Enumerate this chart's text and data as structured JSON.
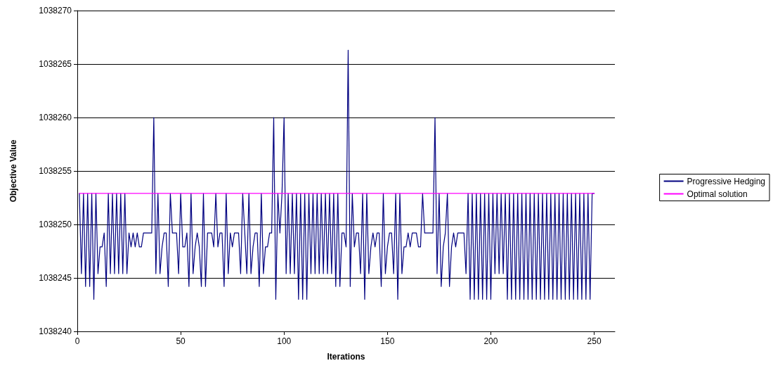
{
  "chart_data": {
    "type": "line",
    "xlabel": "Iterations",
    "ylabel": "Objective Value",
    "x": [
      1,
      2,
      3,
      4,
      5,
      6,
      7,
      8,
      9,
      10,
      11,
      12,
      13,
      14,
      15,
      16,
      17,
      18,
      19,
      20,
      21,
      22,
      23,
      24,
      25,
      26,
      27,
      28,
      29,
      30,
      31,
      32,
      33,
      34,
      35,
      36,
      37,
      38,
      39,
      40,
      41,
      42,
      43,
      44,
      45,
      46,
      47,
      48,
      49,
      50,
      51,
      52,
      53,
      54,
      55,
      56,
      57,
      58,
      59,
      60,
      61,
      62,
      63,
      64,
      65,
      66,
      67,
      68,
      69,
      70,
      71,
      72,
      73,
      74,
      75,
      76,
      77,
      78,
      79,
      80,
      81,
      82,
      83,
      84,
      85,
      86,
      87,
      88,
      89,
      90,
      91,
      92,
      93,
      94,
      95,
      96,
      97,
      98,
      99,
      100,
      101,
      102,
      103,
      104,
      105,
      106,
      107,
      108,
      109,
      110,
      111,
      112,
      113,
      114,
      115,
      116,
      117,
      118,
      119,
      120,
      121,
      122,
      123,
      124,
      125,
      126,
      127,
      128,
      129,
      130,
      131,
      132,
      133,
      134,
      135,
      136,
      137,
      138,
      139,
      140,
      141,
      142,
      143,
      144,
      145,
      146,
      147,
      148,
      149,
      150,
      151,
      152,
      153,
      154,
      155,
      156,
      157,
      158,
      159,
      160,
      161,
      162,
      163,
      164,
      165,
      166,
      167,
      168,
      169,
      170,
      171,
      172,
      173,
      174,
      175,
      176,
      177,
      178,
      179,
      180,
      181,
      182,
      183,
      184,
      185,
      186,
      187,
      188,
      189,
      190,
      191,
      192,
      193,
      194,
      195,
      196,
      197,
      198,
      199,
      200,
      201,
      202,
      203,
      204,
      205,
      206,
      207,
      208,
      209,
      210,
      211,
      212,
      213,
      214,
      215,
      216,
      217,
      218,
      219,
      220,
      221,
      222,
      223,
      224,
      225,
      226,
      227,
      228,
      229,
      230,
      231,
      232,
      233,
      234,
      235,
      236,
      237,
      238,
      239,
      240,
      241,
      242,
      243,
      244,
      245,
      246,
      247,
      248,
      249,
      250
    ],
    "series": [
      {
        "name": "Progressive Hedging",
        "color": "#000080",
        "values": [
          1038252.9,
          1038245.4,
          1038252.9,
          1038244.2,
          1038252.9,
          1038244.2,
          1038252.9,
          1038243.0,
          1038252.9,
          1038245.4,
          1038247.9,
          1038247.9,
          1038249.2,
          1038244.2,
          1038252.9,
          1038245.4,
          1038252.9,
          1038245.4,
          1038252.9,
          1038245.4,
          1038252.9,
          1038245.4,
          1038252.9,
          1038245.4,
          1038249.2,
          1038247.9,
          1038249.2,
          1038247.9,
          1038249.2,
          1038247.9,
          1038247.9,
          1038249.2,
          1038249.2,
          1038249.2,
          1038249.2,
          1038249.2,
          1038260,
          1038245.4,
          1038252.9,
          1038245.4,
          1038247.9,
          1038249.2,
          1038249.2,
          1038244.2,
          1038252.9,
          1038249.2,
          1038249.2,
          1038249.2,
          1038245.4,
          1038252.9,
          1038247.9,
          1038247.9,
          1038249.2,
          1038244.2,
          1038252.9,
          1038245.4,
          1038247.9,
          1038249.2,
          1038247.9,
          1038244.2,
          1038252.9,
          1038244.2,
          1038249.2,
          1038249.2,
          1038249.2,
          1038247.9,
          1038252.9,
          1038247.9,
          1038249.2,
          1038249.2,
          1038244.2,
          1038252.9,
          1038245.4,
          1038249.2,
          1038247.9,
          1038249.2,
          1038249.2,
          1038249.2,
          1038245.4,
          1038252.9,
          1038249.2,
          1038245.4,
          1038252.9,
          1038245.4,
          1038247.9,
          1038249.2,
          1038249.2,
          1038244.2,
          1038252.9,
          1038245.4,
          1038247.9,
          1038247.9,
          1038249.2,
          1038249.2,
          1038260,
          1038243.0,
          1038252.9,
          1038249.2,
          1038252.9,
          1038260,
          1038245.4,
          1038252.9,
          1038245.4,
          1038252.9,
          1038245.4,
          1038252.9,
          1038243.0,
          1038252.9,
          1038243.0,
          1038252.9,
          1038243.0,
          1038252.9,
          1038245.4,
          1038252.9,
          1038245.4,
          1038252.9,
          1038245.4,
          1038252.9,
          1038245.4,
          1038252.9,
          1038245.4,
          1038252.9,
          1038245.4,
          1038252.9,
          1038244.2,
          1038252.9,
          1038244.2,
          1038249.2,
          1038249.2,
          1038247.9,
          1038266.3,
          1038244.2,
          1038252.9,
          1038247.9,
          1038249.2,
          1038249.2,
          1038245.4,
          1038252.9,
          1038243.0,
          1038252.9,
          1038245.4,
          1038247.9,
          1038249.2,
          1038247.9,
          1038249.2,
          1038249.2,
          1038244.2,
          1038252.9,
          1038245.4,
          1038247.9,
          1038249.2,
          1038249.2,
          1038245.4,
          1038252.9,
          1038243.0,
          1038252.9,
          1038245.4,
          1038247.9,
          1038247.9,
          1038249.2,
          1038247.9,
          1038249.2,
          1038249.2,
          1038249.2,
          1038247.9,
          1038247.9,
          1038252.9,
          1038249.2,
          1038249.2,
          1038249.2,
          1038249.2,
          1038249.2,
          1038260,
          1038245.4,
          1038252.9,
          1038244.2,
          1038247.9,
          1038249.2,
          1038252.9,
          1038244.2,
          1038247.9,
          1038249.2,
          1038247.9,
          1038249.2,
          1038249.2,
          1038249.2,
          1038249.2,
          1038245.4,
          1038252.9,
          1038243.0,
          1038252.9,
          1038243.0,
          1038252.9,
          1038243.0,
          1038252.9,
          1038243.0,
          1038252.9,
          1038243.0,
          1038252.9,
          1038243.0,
          1038252.9,
          1038245.4,
          1038252.9,
          1038245.4,
          1038252.9,
          1038245.4,
          1038252.9,
          1038243.0,
          1038252.9,
          1038243.0,
          1038252.9,
          1038243.0,
          1038252.9,
          1038243.0,
          1038252.9,
          1038243.0,
          1038252.9,
          1038243.0,
          1038252.9,
          1038243.0,
          1038252.9,
          1038243.0,
          1038252.9,
          1038243.0,
          1038252.9,
          1038243.0,
          1038252.9,
          1038243.0,
          1038252.9,
          1038243.0,
          1038252.9,
          1038243.0,
          1038252.9,
          1038243.0,
          1038252.9,
          1038243.0,
          1038252.9,
          1038243.0,
          1038252.9,
          1038243.0,
          1038252.9,
          1038243.0,
          1038252.9,
          1038243.0,
          1038252.9,
          1038243.0,
          1038252.9,
          1038243.0,
          1038252.9,
          1038252.9
        ]
      },
      {
        "name": "Optimal solution",
        "color": "#ff00ff",
        "x": [
          1,
          250
        ],
        "values": [
          1038252.9,
          1038252.9
        ]
      }
    ],
    "xlim": [
      0,
      260
    ],
    "xticks": [
      0,
      50,
      100,
      150,
      200,
      250
    ],
    "ylim": [
      1038240,
      1038270
    ],
    "yticks": [
      1038240,
      1038245,
      1038250,
      1038255,
      1038260,
      1038265,
      1038270
    ],
    "grid": "y",
    "legend": "right",
    "marker": "none",
    "line_style": "solid"
  }
}
